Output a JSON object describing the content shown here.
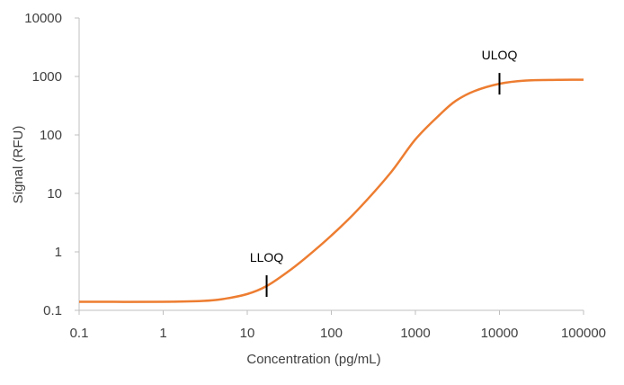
{
  "chart_data": {
    "type": "line",
    "title": "",
    "xlabel": "Concentration (pg/mL)",
    "ylabel": "Signal (RFU)",
    "xscale": "log",
    "yscale": "log",
    "xlim": [
      0.1,
      100000
    ],
    "ylim": [
      0.1,
      10000
    ],
    "x_ticks": [
      "0.1",
      "1",
      "10",
      "100",
      "1000",
      "10000",
      "100000"
    ],
    "y_ticks": [
      "0.1",
      "1",
      "10",
      "100",
      "1000",
      "10000"
    ],
    "grid": false,
    "legend": "none",
    "line_color": "#ED7D31",
    "series": [
      {
        "x": [
          0.1,
          1,
          3,
          5,
          10,
          17,
          30,
          50,
          100,
          200,
          500,
          1000,
          2000,
          3000,
          5000,
          10000,
          20000,
          50000,
          100000
        ],
        "y": [
          0.14,
          0.14,
          0.145,
          0.155,
          0.19,
          0.26,
          0.45,
          0.8,
          1.9,
          5,
          22,
          84,
          230,
          380,
          560,
          750,
          850,
          875,
          880
        ]
      }
    ],
    "annotations": [
      {
        "label": "LLOQ",
        "x": 17,
        "y": 0.26
      },
      {
        "label": "ULOQ",
        "x": 10000,
        "y": 750
      }
    ]
  }
}
